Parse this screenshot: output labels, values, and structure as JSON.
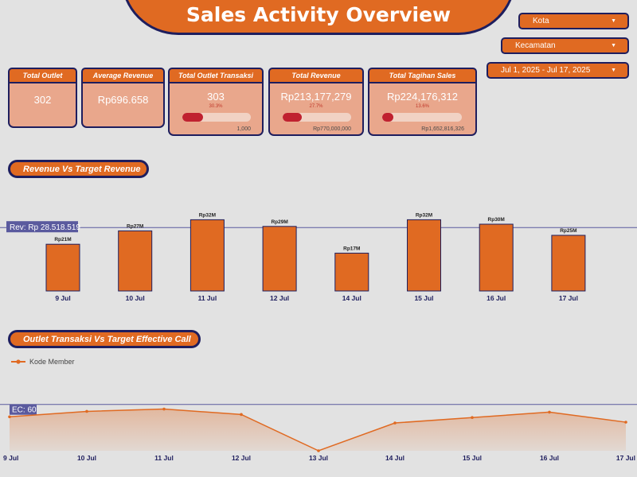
{
  "header": {
    "title": "Sales Activity Overview"
  },
  "filters": {
    "kota": "Kota",
    "kecamatan": "Kecamatan",
    "date_range": "Jul 1, 2025 - Jul 17, 2025",
    "dropdown_symbol": "▼"
  },
  "kpis": {
    "total_outlet": {
      "label": "Total Outlet",
      "value": "302"
    },
    "average_revenue": {
      "label": "Average Revenue",
      "value": "Rp696.658"
    },
    "total_outlet_transaksi": {
      "label": "Total Outlet Transaksi",
      "value": "303",
      "pct_text": "30.3%",
      "progress_fraction": 0.303,
      "target": "1,000"
    },
    "total_revenue": {
      "label": "Total Revenue",
      "value": "Rp213,177,279",
      "pct_text": "27.7%",
      "progress_fraction": 0.277,
      "target": "Rp770,000,000"
    },
    "total_tagihan_sales": {
      "label": "Total Tagihan Sales",
      "value": "Rp224,176,312",
      "pct_text": "13.6%",
      "progress_fraction": 0.136,
      "target": "Rp1,652,816,326"
    }
  },
  "sections": {
    "revenue_chart_title": "Revenue Vs Target Revenue",
    "outlet_chart_title": "Outlet Transaksi Vs Target Effective Call"
  },
  "chart_data": [
    {
      "type": "bar",
      "title": "Revenue Vs Target Revenue",
      "categories": [
        "9 Jul",
        "10 Jul",
        "11 Jul",
        "12 Jul",
        "14 Jul",
        "15 Jul",
        "16 Jul",
        "17 Jul"
      ],
      "values": [
        21,
        27,
        32,
        29,
        17,
        32,
        30,
        25
      ],
      "data_labels": [
        "Rp21M",
        "Rp27M",
        "Rp32M",
        "Rp29M",
        "Rp17M",
        "Rp32M",
        "Rp30M",
        "Rp25M"
      ],
      "unit": "Rp Million",
      "reference_line": {
        "label": "Rev: Rp 28.518.519",
        "value": 28.5
      },
      "ylim": [
        0,
        35
      ]
    },
    {
      "type": "area",
      "title": "Outlet Transaksi Vs Target Effective Call",
      "legend": "Kode Member",
      "categories": [
        "9 Jul",
        "10 Jul",
        "11 Jul",
        "12 Jul",
        "13 Jul",
        "14 Jul",
        "15 Jul",
        "16 Jul",
        "17 Jul"
      ],
      "values": [
        44,
        51,
        54,
        47,
        0,
        36,
        43,
        50,
        37
      ],
      "reference_line": {
        "label": "EC: 60",
        "value": 60
      },
      "ylim": [
        0,
        70
      ]
    }
  ],
  "colors": {
    "accent": "#e06a22",
    "border": "#1e1e5e",
    "ref_line": "#5a5a9e",
    "progress": "#c0212f"
  }
}
